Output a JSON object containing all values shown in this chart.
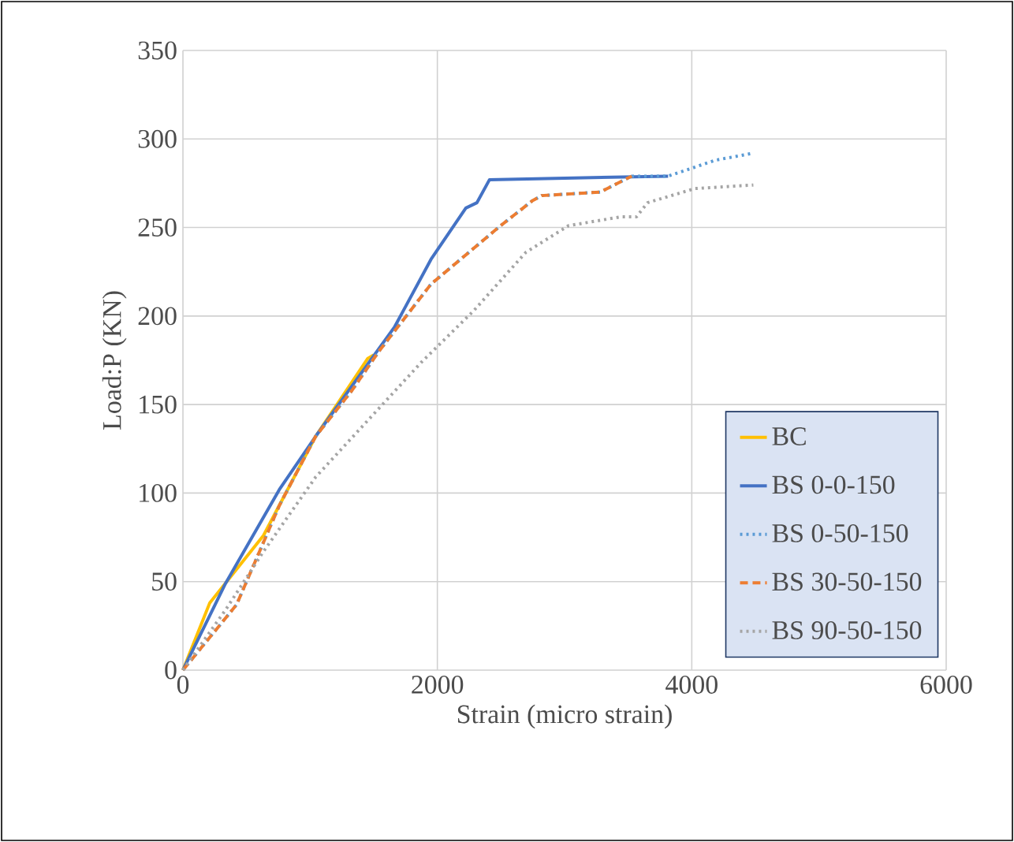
{
  "chart_data": {
    "type": "line",
    "xlabel": "Strain (micro strain)",
    "ylabel": "Load:P (KN)",
    "xlim": [
      0,
      6000
    ],
    "ylim": [
      0,
      350
    ],
    "xticks": [
      0,
      2000,
      4000,
      6000
    ],
    "yticks": [
      0,
      50,
      100,
      150,
      200,
      250,
      300,
      350
    ],
    "grid": true,
    "legend": "bottom right",
    "series": [
      {
        "name": "BC",
        "color": "#ffc000",
        "line_style": "solid",
        "marker": "none",
        "x": [
          0,
          211,
          633,
          1043,
          1453,
          1500
        ],
        "values": [
          0,
          38,
          76,
          132,
          176,
          178
        ]
      },
      {
        "name": "BS 0-0-150",
        "color": "#4472c4",
        "line_style": "solid",
        "marker": "none",
        "x": [
          0,
          335,
          758,
          1043,
          1665,
          1950,
          2224,
          2311,
          2410,
          3814
        ],
        "values": [
          0,
          49,
          102,
          132,
          194,
          232,
          261,
          264,
          277,
          279
        ]
      },
      {
        "name": "BS 0-50-150",
        "color": "#5b9bd5",
        "line_style": "dotted",
        "x": [
          0,
          422,
          758,
          1043,
          1329,
          1540,
          1950,
          2497,
          2745,
          2820,
          3280,
          3528,
          3814,
          4186,
          4484
        ],
        "values": [
          0,
          37,
          93,
          132,
          158,
          180,
          218,
          251,
          265,
          268,
          270,
          279,
          279,
          288,
          292
        ]
      },
      {
        "name": "BS 30-50-150",
        "color": "#ed7d31",
        "line_style": "dashed",
        "x": [
          0,
          422,
          758,
          1043,
          1329,
          1540,
          1950,
          2497,
          2745,
          2820,
          3280,
          3528
        ],
        "values": [
          0,
          37,
          93,
          132,
          158,
          180,
          218,
          251,
          265,
          268,
          270,
          279
        ]
      },
      {
        "name": "BS 90-50-150",
        "color": "#a5a5a5",
        "line_style": "dotted",
        "x": [
          0,
          335,
          633,
          1043,
          1453,
          1876,
          2286,
          2696,
          3031,
          3441,
          3565,
          3652,
          4025,
          4484
        ],
        "values": [
          0,
          34,
          67,
          109,
          141,
          174,
          203,
          236,
          251,
          256,
          256,
          264,
          272,
          274
        ]
      }
    ]
  }
}
